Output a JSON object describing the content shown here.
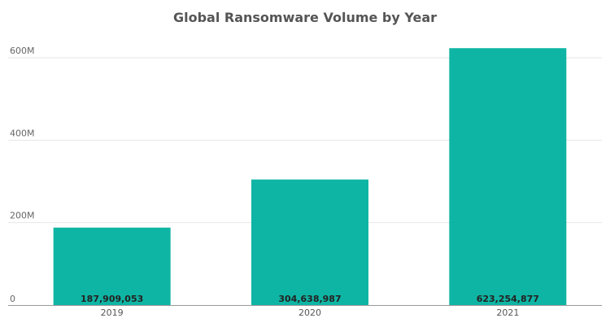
{
  "chart_data": {
    "type": "bar",
    "title": "Global Ransomware Volume by Year",
    "categories": [
      "2019",
      "2020",
      "2021"
    ],
    "values": [
      187909053,
      304638987,
      623254877
    ],
    "data_labels": [
      "187,909,053",
      "304,638,987",
      "623,254,877"
    ],
    "yticks": [
      {
        "value": 0,
        "label": "0"
      },
      {
        "value": 200000000,
        "label": "200M"
      },
      {
        "value": 400000000,
        "label": "400M"
      },
      {
        "value": 600000000,
        "label": "600M"
      }
    ],
    "ylim": [
      0,
      600000000
    ],
    "xlabel": "",
    "ylabel": "",
    "grid": true,
    "bar_color": "#0fb5a4"
  }
}
